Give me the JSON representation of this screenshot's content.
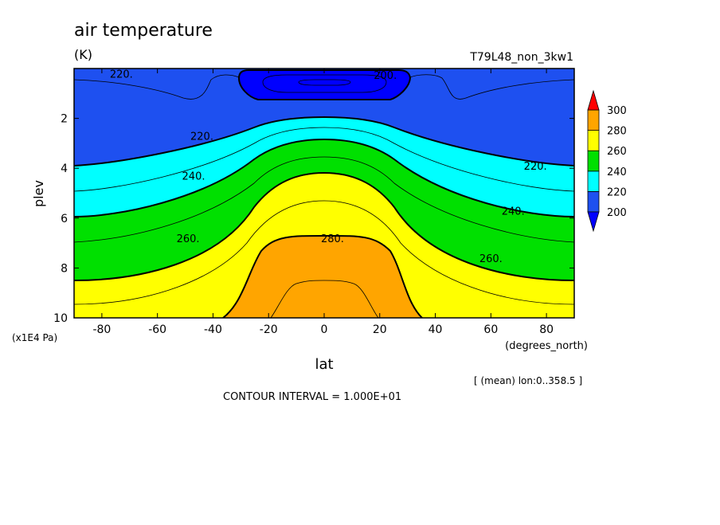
{
  "chart_data": {
    "type": "contour",
    "title": "air temperature",
    "units": "(K)",
    "run_label": "T79L48_non_3kw1",
    "xlabel": "lat",
    "x_units": "(degrees_north)",
    "ylabel": "plev",
    "y_units": "(x1E4 Pa)",
    "xlim": [
      -90,
      90
    ],
    "ylim": [
      10,
      0
    ],
    "x_ticks": [
      -80,
      -60,
      -40,
      -20,
      0,
      20,
      40,
      60,
      80
    ],
    "x_tick_labels": [
      "-80",
      "-60",
      "-40",
      "-20",
      "0",
      "20",
      "40",
      "60",
      "80"
    ],
    "y_ticks": [
      2,
      4,
      6,
      8,
      10
    ],
    "y_tick_labels": [
      "2",
      "4",
      "6",
      "8",
      "10"
    ],
    "contour_interval_text": "CONTOUR INTERVAL = 1.000E+01",
    "mean_note": "[ (mean) lon:0..358.5 ]",
    "colorbar": {
      "levels": [
        200,
        220,
        240,
        260,
        280,
        300
      ],
      "labels": [
        "200",
        "220",
        "240",
        "260",
        "280",
        "300"
      ],
      "colors": [
        "#1e50f0",
        "#00ffff",
        "#00e000",
        "#ffff00",
        "#ffa500"
      ],
      "below_color": "#0000ff",
      "above_color": "#ff0000"
    },
    "contour_labels": [
      {
        "text": "220.",
        "lat": -73,
        "plev": 0.2
      },
      {
        "text": "200.",
        "lat": 22,
        "plev": 0.25
      },
      {
        "text": "220.",
        "lat": -44,
        "plev": 2.7
      },
      {
        "text": "220.",
        "lat": 76,
        "plev": 3.9
      },
      {
        "text": "240.",
        "lat": -47,
        "plev": 4.3
      },
      {
        "text": "240.",
        "lat": 68,
        "plev": 5.7
      },
      {
        "text": "260.",
        "lat": -49,
        "plev": 6.8
      },
      {
        "text": "260.",
        "lat": 60,
        "plev": 7.6
      },
      {
        "text": "280.",
        "lat": 3,
        "plev": 6.8
      }
    ]
  }
}
